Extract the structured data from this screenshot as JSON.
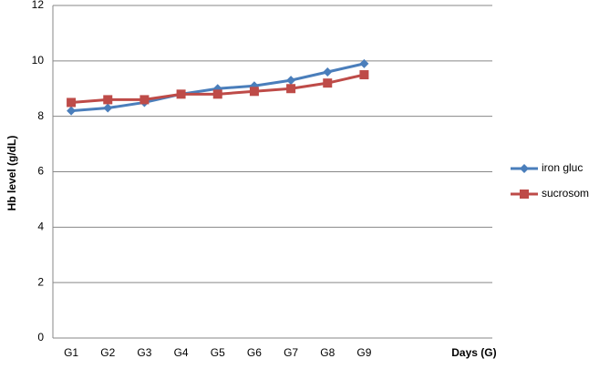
{
  "chart_data": {
    "type": "line",
    "y_label": "Hb level (g/dL)",
    "x_label": "Days (G)",
    "categories": [
      "G1",
      "G2",
      "G3",
      "G4",
      "G5",
      "G6",
      "G7",
      "G8",
      "G9",
      null,
      null,
      null
    ],
    "series": [
      {
        "name": "iron gluc",
        "color": "#4a7ebb",
        "marker": "diamond",
        "values": [
          8.2,
          8.3,
          8.5,
          8.8,
          9.0,
          9.1,
          9.3,
          9.6,
          9.9,
          null,
          null,
          null
        ]
      },
      {
        "name": "sucrosom",
        "color": "#be4b48",
        "marker": "square",
        "values": [
          8.5,
          8.6,
          8.6,
          8.8,
          8.8,
          8.9,
          9.0,
          9.2,
          9.5,
          null,
          null,
          null
        ]
      }
    ],
    "ylim": [
      0,
      12
    ],
    "yticks": [
      0,
      2,
      4,
      6,
      8,
      10,
      12
    ],
    "grid": true,
    "legend": "right"
  }
}
